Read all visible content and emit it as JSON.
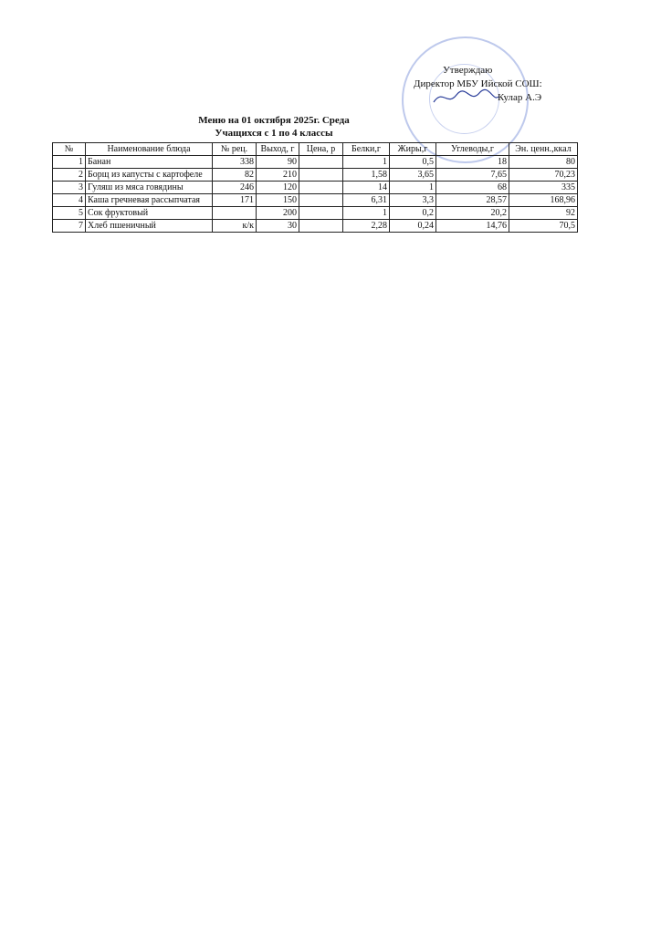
{
  "approval": {
    "line1": "Утверждаю",
    "line2": "Директор МБУ Ийской СОШ:",
    "line3": "Кулар А.Э"
  },
  "header": {
    "title": "Меню на 01 октября  2025г. Среда",
    "subtitle": "Учащихся с 1 по 4 классы"
  },
  "table": {
    "columns": [
      "№",
      "Наименование блюда",
      "№ рец.",
      "Выход, г",
      "Цена, р",
      "Белки,г",
      "Жиры,г",
      "Углеводы,г",
      "Эн. ценн.,ккал"
    ],
    "rows": [
      [
        "1",
        "Банан",
        "338",
        "90",
        null,
        "1",
        "0,5",
        "18",
        "80"
      ],
      [
        "2",
        "Борщ из капусты с картофеле",
        "82",
        "210",
        null,
        "1,58",
        "3,65",
        "7,65",
        "70,23"
      ],
      [
        "3",
        "Гуляш из мяса говядины",
        "246",
        "120",
        null,
        "14",
        "1",
        "68",
        "335"
      ],
      [
        "4",
        "Каша гречневая рассыпчатая",
        "171",
        "150",
        null,
        "6,31",
        "3,3",
        "28,57",
        "168,96"
      ],
      [
        "5",
        "Сок фруктовый",
        null,
        "200",
        null,
        "1",
        "0,2",
        "20,2",
        "92"
      ],
      [
        "7",
        "Хлеб пшеничный",
        "к/к",
        "30",
        null,
        "2,28",
        "0,24",
        "14,76",
        "70,5"
      ]
    ]
  }
}
